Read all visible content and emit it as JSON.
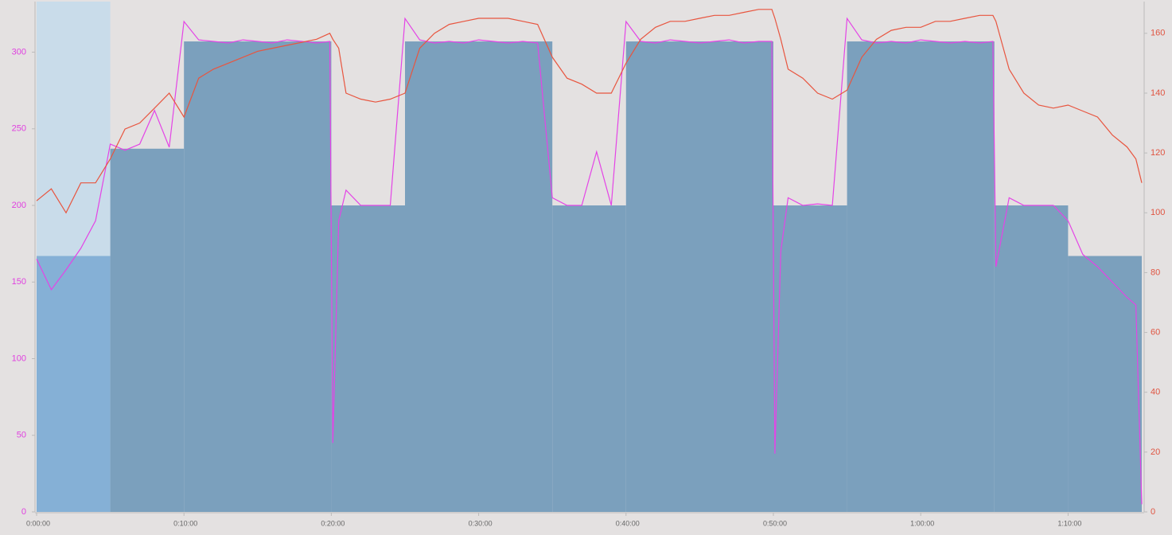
{
  "chart_data": {
    "type": "workout",
    "x": [
      0,
      1,
      2,
      3,
      4,
      5,
      6,
      7,
      8,
      9,
      10,
      11,
      12,
      13,
      14,
      15,
      16,
      17,
      18,
      19,
      19.9,
      20.1,
      20.5,
      21,
      22,
      23,
      24,
      25,
      26,
      27,
      28,
      29,
      30,
      31,
      32,
      33,
      34,
      35,
      36,
      37,
      38,
      39,
      40,
      41,
      42,
      43,
      44,
      45,
      46,
      47,
      48,
      49,
      49.9,
      50.1,
      50.5,
      51,
      52,
      53,
      54,
      55,
      56,
      57,
      58,
      59,
      60,
      61,
      62,
      63,
      64,
      64.9,
      65.1,
      66,
      67,
      68,
      69,
      70,
      71,
      72,
      73,
      74,
      74.6,
      75
    ],
    "series": [
      {
        "color": "#e444e6",
        "values": [
          165,
          145,
          158,
          172,
          190,
          240,
          236,
          240,
          262,
          238,
          320,
          308,
          307,
          306,
          308,
          307,
          306,
          308,
          307,
          306,
          307,
          45,
          190,
          210,
          200,
          200,
          200,
          322,
          308,
          306,
          307,
          306,
          308,
          307,
          306,
          307,
          306,
          205,
          200,
          200,
          235,
          200,
          320,
          307,
          306,
          308,
          307,
          306,
          307,
          308,
          306,
          307,
          307,
          38,
          170,
          205,
          200,
          201,
          200,
          322,
          308,
          306,
          307,
          306,
          308,
          307,
          306,
          307,
          306,
          307,
          160,
          205,
          200,
          200,
          200,
          190,
          168,
          160,
          150,
          140,
          135,
          5
        ]
      },
      {
        "color": "#e8553f",
        "axis": "y2",
        "values": [
          104,
          108,
          100,
          110,
          110,
          118,
          128,
          130,
          135,
          140,
          132,
          145,
          148,
          150,
          152,
          154,
          155,
          156,
          157,
          158,
          160,
          158,
          155,
          140,
          138,
          137,
          138,
          140,
          155,
          160,
          163,
          164,
          165,
          165,
          165,
          164,
          163,
          152,
          145,
          143,
          140,
          140,
          150,
          158,
          162,
          164,
          164,
          165,
          166,
          166,
          167,
          168,
          168,
          165,
          158,
          148,
          145,
          140,
          138,
          141,
          152,
          158,
          161,
          162,
          162,
          164,
          164,
          165,
          166,
          166,
          164,
          148,
          140,
          136,
          135,
          136,
          134,
          132,
          126,
          122,
          118,
          110
        ]
      }
    ],
    "target_x": [
      0,
      5,
      10,
      20,
      25,
      35,
      40,
      50,
      55,
      65,
      70,
      75
    ],
    "target_values": [
      167,
      237,
      307,
      200,
      307,
      200,
      307,
      200,
      307,
      200,
      167
    ],
    "target_color": "#7ba0bd",
    "selected_step": 0,
    "xlim": [
      0,
      75
    ],
    "xticks": [
      {
        "value": 0,
        "label": "0:00:00"
      },
      {
        "value": 10,
        "label": "0:10:00"
      },
      {
        "value": 20,
        "label": "0:20:00"
      },
      {
        "value": 30,
        "label": "0:30:00"
      },
      {
        "value": 40,
        "label": "0:40:00"
      },
      {
        "value": 50,
        "label": "0:50:00"
      },
      {
        "value": 60,
        "label": "1:00:00"
      },
      {
        "value": 70,
        "label": "1:10:00"
      }
    ],
    "ylim": [
      0,
      333
    ],
    "yticks": [
      0,
      50,
      100,
      150,
      200,
      250,
      300
    ],
    "y2lim": [
      0,
      170.6
    ],
    "y2ticks": [
      0,
      20,
      40,
      60,
      80,
      100,
      120,
      140,
      160
    ]
  }
}
